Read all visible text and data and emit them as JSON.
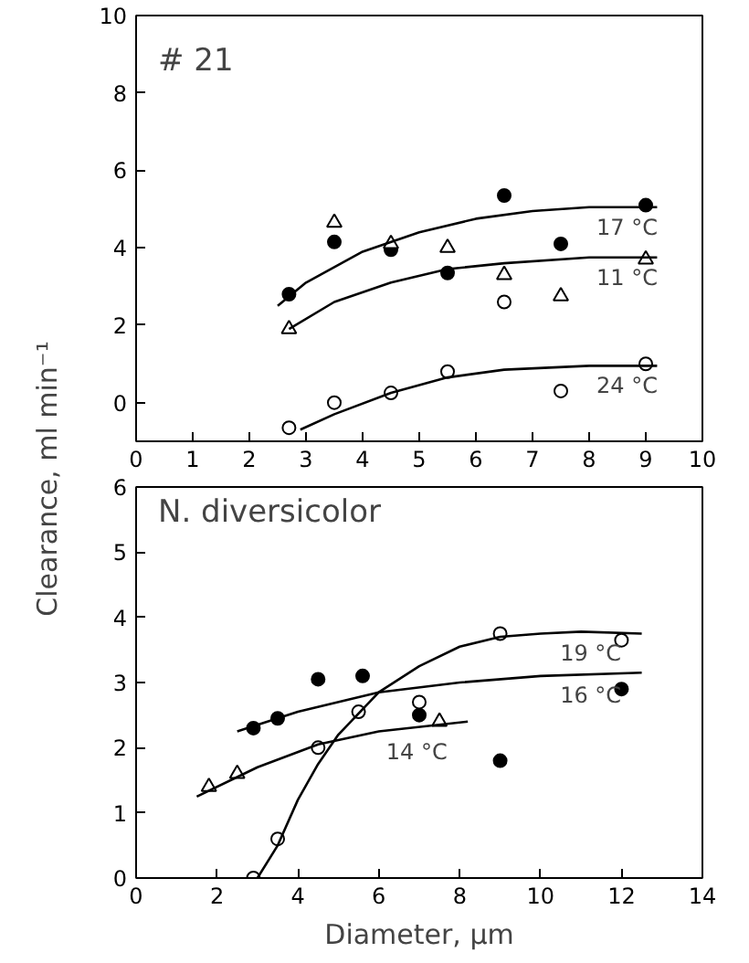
{
  "chart_data": [
    {
      "type": "scatter",
      "title": "# 21",
      "ylabel": "Clearance, ml min⁻¹",
      "xlim": [
        0,
        10
      ],
      "ylim": [
        -1,
        10
      ],
      "xticks": [
        0,
        1,
        2,
        3,
        4,
        5,
        6,
        7,
        8,
        9,
        10
      ],
      "yticks": [
        0,
        2,
        4,
        6,
        8,
        10
      ],
      "grid": false,
      "series": [
        {
          "marker": "circle",
          "color": "#000000",
          "x": [
            2.7,
            3.5,
            4.5,
            5.5,
            6.5,
            7.5,
            9
          ],
          "values": [
            2.8,
            4.15,
            3.95,
            3.35,
            5.35,
            4.1,
            5.1
          ]
        },
        {
          "marker": "triangle",
          "color": "#ffffff",
          "x": [
            2.7,
            3.5,
            4.5,
            5.5,
            6.5,
            7.5,
            9
          ],
          "values": [
            1.9,
            4.65,
            4.1,
            4.0,
            3.3,
            2.75,
            3.7
          ]
        },
        {
          "marker": "circle",
          "color": "#ffffff",
          "x": [
            2.7,
            3.5,
            4.5,
            5.5,
            6.5,
            7.5,
            9
          ],
          "values": [
            -0.65,
            0.0,
            0.25,
            0.8,
            2.6,
            0.3,
            1.0
          ]
        },
        {
          "type": "line",
          "color": "#000000",
          "x": [
            2.5,
            3,
            4,
            5,
            6,
            7,
            8,
            9.2
          ],
          "values": [
            2.5,
            3.1,
            3.9,
            4.4,
            4.75,
            4.95,
            5.05,
            5.05
          ]
        },
        {
          "type": "line",
          "color": "#000000",
          "x": [
            2.7,
            3.5,
            4.5,
            5.5,
            6.5,
            8,
            9.2
          ],
          "values": [
            1.9,
            2.6,
            3.1,
            3.45,
            3.6,
            3.75,
            3.75
          ]
        },
        {
          "type": "line",
          "color": "#000000",
          "x": [
            2.9,
            3.5,
            4.5,
            5.5,
            6.5,
            8,
            9.2
          ],
          "values": [
            -0.7,
            -0.3,
            0.25,
            0.65,
            0.85,
            0.95,
            0.95
          ]
        }
      ],
      "annotations": [
        {
          "text": "17 °C",
          "x": 8,
          "y": 5.05
        },
        {
          "text": "11 °C",
          "x": 8,
          "y": 3.75
        },
        {
          "text": "24 °C",
          "x": 8,
          "y": 0.95
        }
      ]
    },
    {
      "type": "scatter",
      "title": "N. diversicolor",
      "xlabel": "Diameter, µm",
      "xlim": [
        0,
        14
      ],
      "ylim": [
        0,
        6
      ],
      "xticks": [
        0,
        2,
        4,
        6,
        8,
        10,
        12,
        14
      ],
      "yticks": [
        0,
        1,
        2,
        3,
        4,
        5,
        6
      ],
      "grid": false,
      "series": [
        {
          "marker": "circle",
          "color": "#000000",
          "x": [
            2.9,
            3.5,
            4.5,
            5.6,
            7,
            9,
            12
          ],
          "values": [
            2.3,
            2.45,
            3.05,
            3.1,
            2.5,
            1.8,
            2.9
          ]
        },
        {
          "marker": "circle",
          "color": "#ffffff",
          "x": [
            2.9,
            3.5,
            4.5,
            5.5,
            7,
            9,
            12
          ],
          "values": [
            0.0,
            0.6,
            2.0,
            2.55,
            2.7,
            3.75,
            3.65
          ]
        },
        {
          "marker": "triangle",
          "color": "#ffffff",
          "x": [
            1.8,
            2.5,
            7.5
          ],
          "values": [
            1.4,
            1.6,
            2.4
          ]
        },
        {
          "type": "line",
          "color": "#000000",
          "x": [
            2.5,
            4,
            6,
            8,
            10,
            12.5
          ],
          "values": [
            2.25,
            2.55,
            2.85,
            3.0,
            3.1,
            3.15
          ]
        },
        {
          "type": "line",
          "color": "#000000",
          "x": [
            3.0,
            3.5,
            4,
            4.5,
            5,
            6,
            7,
            8,
            9,
            10,
            11,
            12.5
          ],
          "values": [
            0.0,
            0.5,
            1.2,
            1.75,
            2.2,
            2.85,
            3.25,
            3.55,
            3.7,
            3.75,
            3.78,
            3.75
          ]
        },
        {
          "type": "line",
          "color": "#000000",
          "x": [
            1.5,
            3,
            4.5,
            6,
            8.2
          ],
          "values": [
            1.25,
            1.7,
            2.05,
            2.25,
            2.4
          ]
        }
      ],
      "annotations": [
        {
          "text": "19 °C",
          "x": 10.3,
          "y": 3.76
        },
        {
          "text": "16 °C",
          "x": 10.3,
          "y": 3.11
        },
        {
          "text": "14 °C",
          "x": 6,
          "y": 2.25
        }
      ]
    }
  ]
}
